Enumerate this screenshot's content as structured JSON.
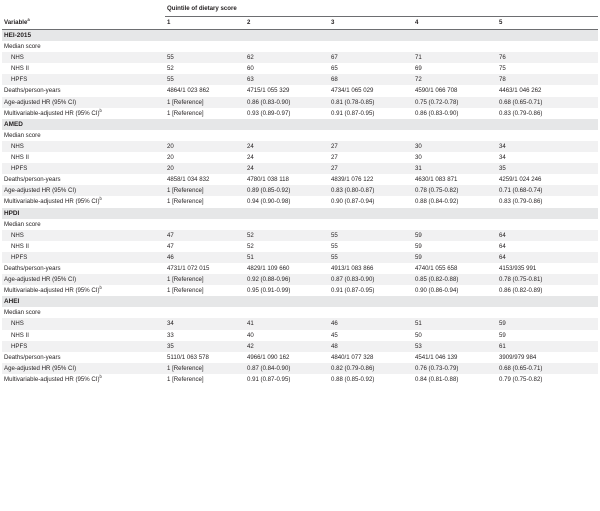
{
  "header": {
    "variable_label": "Variable",
    "variable_sup": "a",
    "quintile_label": "Quintile of dietary score",
    "quintiles": [
      "1",
      "2",
      "3",
      "4",
      "5"
    ]
  },
  "sections": [
    {
      "title": "HEI-2015",
      "median_label": "Median score",
      "cohorts": [
        {
          "label": "NHS",
          "values": [
            "55",
            "62",
            "67",
            "71",
            "76"
          ]
        },
        {
          "label": "NHS II",
          "values": [
            "52",
            "60",
            "65",
            "69",
            "75"
          ]
        },
        {
          "label": "HPFS",
          "values": [
            "55",
            "63",
            "68",
            "72",
            "78"
          ]
        }
      ],
      "deaths": {
        "label": "Deaths/person-years",
        "values": [
          "4864/1 023 862",
          "4715/1 055 329",
          "4734/1 065 029",
          "4590/1 066 708",
          "4463/1 046 262"
        ]
      },
      "age_hr": {
        "label": "Age-adjusted HR (95% CI)",
        "values": [
          "1 [Reference]",
          "0.86 (0.83-0.90)",
          "0.81 (0.78-0.85)",
          "0.75 (0.72-0.78)",
          "0.68 (0.65-0.71)"
        ]
      },
      "multi_hr": {
        "label": "Multivariable-adjusted HR (95% CI)",
        "sup": "b",
        "values": [
          "1 [Reference]",
          "0.93 (0.89-0.97)",
          "0.91 (0.87-0.95)",
          "0.86 (0.83-0.90)",
          "0.83 (0.79-0.86)"
        ]
      }
    },
    {
      "title": "AMED",
      "median_label": "Median score",
      "cohorts": [
        {
          "label": "NHS",
          "values": [
            "20",
            "24",
            "27",
            "30",
            "34"
          ]
        },
        {
          "label": "NHS II",
          "values": [
            "20",
            "24",
            "27",
            "30",
            "34"
          ]
        },
        {
          "label": "HPFS",
          "values": [
            "20",
            "24",
            "27",
            "31",
            "35"
          ]
        }
      ],
      "deaths": {
        "label": "Deaths/person-years",
        "values": [
          "4858/1 034 832",
          "4780/1 038 118",
          "4839/1 076 122",
          "4630/1 083 871",
          "4259/1 024 246"
        ]
      },
      "age_hr": {
        "label": "Age-adjusted HR (95% CI)",
        "values": [
          "1 [Reference]",
          "0.89 (0.85-0.92)",
          "0.83 (0.80-0.87)",
          "0.78 (0.75-0.82)",
          "0.71 (0.68-0.74)"
        ]
      },
      "multi_hr": {
        "label": "Multivariable-adjusted HR (95% CI)",
        "sup": "b",
        "values": [
          "1 [Reference]",
          "0.94 (0.90-0.98)",
          "0.90 (0.87-0.94)",
          "0.88 (0.84-0.92)",
          "0.83 (0.79-0.86)"
        ]
      }
    },
    {
      "title": "HPDI",
      "median_label": "Median score",
      "cohorts": [
        {
          "label": "NHS",
          "values": [
            "47",
            "52",
            "55",
            "59",
            "64"
          ]
        },
        {
          "label": "NHS II",
          "values": [
            "47",
            "52",
            "55",
            "59",
            "64"
          ]
        },
        {
          "label": "HPFS",
          "values": [
            "46",
            "51",
            "55",
            "59",
            "64"
          ]
        }
      ],
      "deaths": {
        "label": "Deaths/person-years",
        "values": [
          "4731/1 072 015",
          "4829/1 109 660",
          "4913/1 083 866",
          "4740/1 055 658",
          "4153/935 991"
        ]
      },
      "age_hr": {
        "label": "Age-adjusted HR (95% CI)",
        "values": [
          "1 [Reference]",
          "0.92 (0.88-0.96)",
          "0.87 (0.83-0.90)",
          "0.85 (0.82-0.88)",
          "0.78 (0.75-0.81)"
        ]
      },
      "multi_hr": {
        "label": "Multivariable-adjusted HR (95% CI)",
        "sup": "b",
        "values": [
          "1 [Reference]",
          "0.95 (0.91-0.99)",
          "0.91 (0.87-0.95)",
          "0.90 (0.86-0.94)",
          "0.86 (0.82-0.89)"
        ]
      }
    },
    {
      "title": "AHEI",
      "median_label": "Median score",
      "cohorts": [
        {
          "label": "NHS",
          "values": [
            "34",
            "41",
            "46",
            "51",
            "59"
          ]
        },
        {
          "label": "NHS II",
          "values": [
            "33",
            "40",
            "45",
            "50",
            "59"
          ]
        },
        {
          "label": "HPFS",
          "values": [
            "35",
            "42",
            "48",
            "53",
            "61"
          ]
        }
      ],
      "deaths": {
        "label": "Deaths/person-years",
        "values": [
          "5110/1 063 578",
          "4966/1 090 162",
          "4840/1 077 328",
          "4541/1 046 139",
          "3909/979 984"
        ]
      },
      "age_hr": {
        "label": "Age-adjusted HR (95% CI)",
        "values": [
          "1 [Reference]",
          "0.87 (0.84-0.90)",
          "0.82 (0.79-0.86)",
          "0.76 (0.73-0.79)",
          "0.68 (0.65-0.71)"
        ]
      },
      "multi_hr": {
        "label": "Multivariable-adjusted HR (95% CI)",
        "sup": "b",
        "values": [
          "1 [Reference]",
          "0.91 (0.87-0.95)",
          "0.88 (0.85-0.92)",
          "0.84 (0.81-0.88)",
          "0.79 (0.75-0.82)"
        ]
      }
    }
  ]
}
